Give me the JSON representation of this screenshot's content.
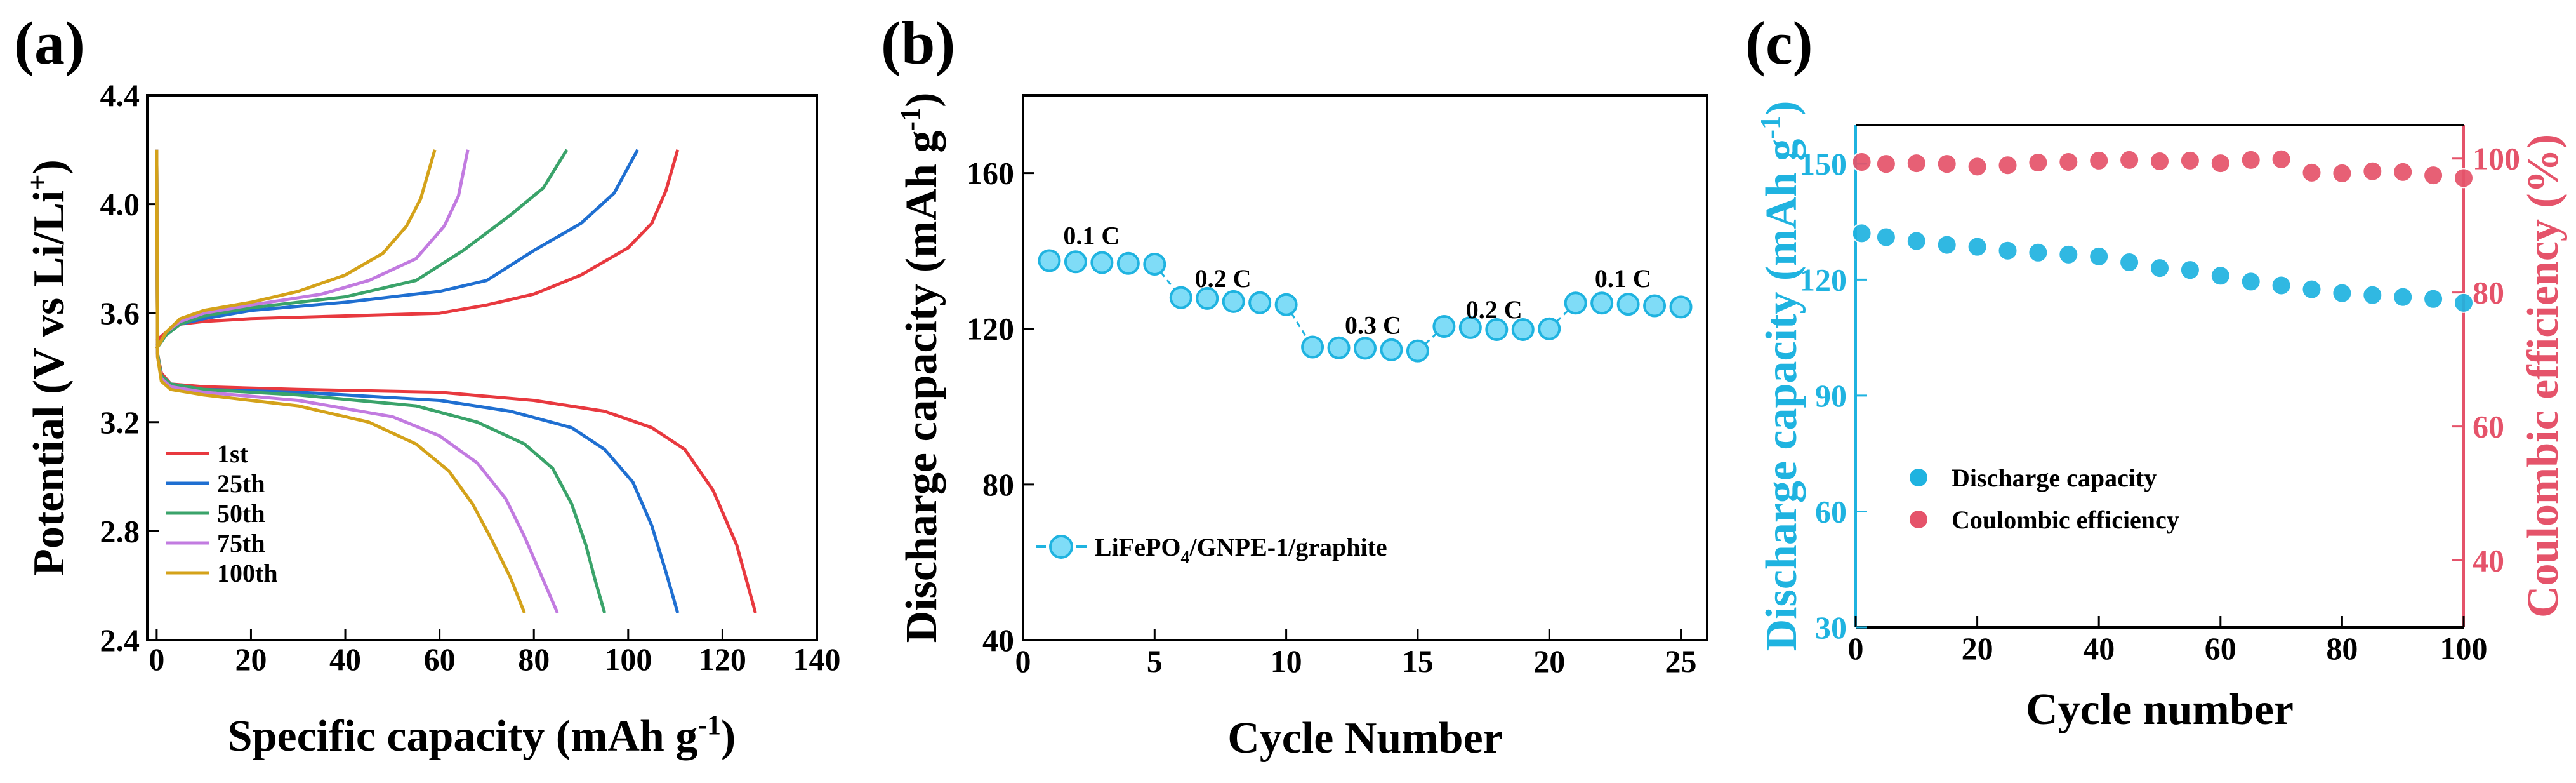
{
  "colors": {
    "red": "#e8393f",
    "blue": "#1f6fd1",
    "green": "#3aa36a",
    "purple": "#c27be0",
    "gold": "#d4a21a",
    "cyan": "#1fb3e0",
    "cyan_light": "#7fdcf7",
    "rose": "#e5536a",
    "axis": "#000000"
  },
  "chart_data": [
    {
      "panel": "(a)",
      "type": "line",
      "xlabel": "Specific capacity (mAh g",
      "xlabel_sup": "-1",
      "xlabel_end": ")",
      "ylabel": "Potential (V vs Li/Li",
      "ylabel_sup": "+",
      "ylabel_end": ")",
      "xlim": [
        -2,
        140
      ],
      "ylim": [
        2.4,
        4.4
      ],
      "xticks": [
        0,
        20,
        40,
        60,
        80,
        100,
        120,
        140
      ],
      "yticks": [
        2.4,
        2.8,
        3.2,
        3.6,
        4.0,
        4.4
      ],
      "ytick_labels": [
        "2.4",
        "2.8",
        "3.2",
        "3.6",
        "4.0",
        "4.4"
      ],
      "legend_position": "bottom-left",
      "series": [
        {
          "name": "1st",
          "color": "#e8393f",
          "charge": [
            [
              0,
              3.5
            ],
            [
              2,
              3.53
            ],
            [
              5,
              3.56
            ],
            [
              10,
              3.57
            ],
            [
              20,
              3.58
            ],
            [
              40,
              3.59
            ],
            [
              60,
              3.6
            ],
            [
              70,
              3.63
            ],
            [
              80,
              3.67
            ],
            [
              90,
              3.74
            ],
            [
              100,
              3.84
            ],
            [
              105,
              3.93
            ],
            [
              108,
              4.05
            ],
            [
              110.5,
              4.2
            ]
          ],
          "discharge": [
            [
              0,
              4.2
            ],
            [
              0.2,
              3.45
            ],
            [
              1,
              3.38
            ],
            [
              3,
              3.34
            ],
            [
              10,
              3.33
            ],
            [
              30,
              3.32
            ],
            [
              60,
              3.31
            ],
            [
              80,
              3.28
            ],
            [
              95,
              3.24
            ],
            [
              105,
              3.18
            ],
            [
              112,
              3.1
            ],
            [
              118,
              2.95
            ],
            [
              123,
              2.75
            ],
            [
              127,
              2.5
            ]
          ]
        },
        {
          "name": "25th",
          "color": "#1f6fd1",
          "charge": [
            [
              0,
              3.48
            ],
            [
              2,
              3.52
            ],
            [
              5,
              3.56
            ],
            [
              10,
              3.58
            ],
            [
              20,
              3.61
            ],
            [
              40,
              3.64
            ],
            [
              60,
              3.68
            ],
            [
              70,
              3.72
            ],
            [
              80,
              3.83
            ],
            [
              90,
              3.93
            ],
            [
              97,
              4.04
            ],
            [
              102,
              4.2
            ]
          ],
          "discharge": [
            [
              0,
              4.2
            ],
            [
              0.2,
              3.45
            ],
            [
              1,
              3.37
            ],
            [
              3,
              3.34
            ],
            [
              10,
              3.32
            ],
            [
              30,
              3.31
            ],
            [
              60,
              3.28
            ],
            [
              75,
              3.24
            ],
            [
              88,
              3.18
            ],
            [
              95,
              3.1
            ],
            [
              101,
              2.98
            ],
            [
              105,
              2.82
            ],
            [
              108,
              2.65
            ],
            [
              110.5,
              2.5
            ]
          ]
        },
        {
          "name": "50th",
          "color": "#3aa36a",
          "charge": [
            [
              0,
              3.47
            ],
            [
              2,
              3.52
            ],
            [
              5,
              3.56
            ],
            [
              10,
              3.59
            ],
            [
              20,
              3.62
            ],
            [
              40,
              3.66
            ],
            [
              55,
              3.72
            ],
            [
              65,
              3.83
            ],
            [
              75,
              3.96
            ],
            [
              82,
              4.06
            ],
            [
              87,
              4.2
            ]
          ],
          "discharge": [
            [
              0,
              4.2
            ],
            [
              0.2,
              3.45
            ],
            [
              1,
              3.37
            ],
            [
              3,
              3.34
            ],
            [
              10,
              3.32
            ],
            [
              30,
              3.3
            ],
            [
              55,
              3.26
            ],
            [
              68,
              3.2
            ],
            [
              78,
              3.12
            ],
            [
              84,
              3.03
            ],
            [
              88,
              2.9
            ],
            [
              91,
              2.75
            ],
            [
              93,
              2.62
            ],
            [
              95,
              2.5
            ]
          ]
        },
        {
          "name": "75th",
          "color": "#c27be0",
          "charge": [
            [
              0,
              3.47
            ],
            [
              2,
              3.53
            ],
            [
              5,
              3.57
            ],
            [
              10,
              3.6
            ],
            [
              20,
              3.63
            ],
            [
              35,
              3.67
            ],
            [
              45,
              3.72
            ],
            [
              55,
              3.8
            ],
            [
              61,
              3.92
            ],
            [
              64,
              4.03
            ],
            [
              66,
              4.2
            ]
          ],
          "discharge": [
            [
              0,
              4.2
            ],
            [
              0.2,
              3.44
            ],
            [
              1,
              3.36
            ],
            [
              3,
              3.33
            ],
            [
              10,
              3.31
            ],
            [
              30,
              3.28
            ],
            [
              50,
              3.22
            ],
            [
              60,
              3.15
            ],
            [
              68,
              3.05
            ],
            [
              74,
              2.92
            ],
            [
              78,
              2.78
            ],
            [
              82,
              2.62
            ],
            [
              85,
              2.5
            ]
          ]
        },
        {
          "name": "100th",
          "color": "#d4a21a",
          "charge": [
            [
              0,
              3.47
            ],
            [
              2,
              3.53
            ],
            [
              5,
              3.58
            ],
            [
              10,
              3.61
            ],
            [
              20,
              3.64
            ],
            [
              30,
              3.68
            ],
            [
              40,
              3.74
            ],
            [
              48,
              3.82
            ],
            [
              53,
              3.92
            ],
            [
              56,
              4.02
            ],
            [
              59,
              4.2
            ]
          ],
          "discharge": [
            [
              0,
              4.2
            ],
            [
              0.2,
              3.44
            ],
            [
              1,
              3.35
            ],
            [
              3,
              3.32
            ],
            [
              10,
              3.3
            ],
            [
              30,
              3.26
            ],
            [
              45,
              3.2
            ],
            [
              55,
              3.12
            ],
            [
              62,
              3.02
            ],
            [
              67,
              2.9
            ],
            [
              71,
              2.77
            ],
            [
              75,
              2.63
            ],
            [
              78,
              2.5
            ]
          ]
        }
      ]
    },
    {
      "panel": "(b)",
      "type": "scatter",
      "xlabel": "Cycle Number",
      "ylabel": "Discharge capacity (mAh g",
      "ylabel_sup": "-1",
      "ylabel_end": ")",
      "xlim": [
        0,
        26
      ],
      "ylim": [
        40,
        180
      ],
      "xticks": [
        0,
        5,
        10,
        15,
        20,
        25
      ],
      "yticks": [
        40,
        80,
        120,
        160
      ],
      "legend": {
        "pre": "LiFePO",
        "sub": "4",
        "post": "/GNPE-1/graphite",
        "position": "lower-left"
      },
      "annotations": [
        {
          "text": "0.1 C",
          "x": 2.6,
          "y": 144
        },
        {
          "text": "0.2 C",
          "x": 7.6,
          "y": 133
        },
        {
          "text": "0.3 C",
          "x": 13.3,
          "y": 121
        },
        {
          "text": "0.2 C",
          "x": 17.9,
          "y": 125
        },
        {
          "text": "0.1 C",
          "x": 22.8,
          "y": 133
        }
      ],
      "x": [
        1,
        2,
        3,
        4,
        5,
        6,
        7,
        8,
        9,
        10,
        11,
        12,
        13,
        14,
        15,
        16,
        17,
        18,
        19,
        20,
        21,
        22,
        23,
        24,
        25
      ],
      "values": [
        137.5,
        137.2,
        137.0,
        136.8,
        136.6,
        128.0,
        127.8,
        127.0,
        126.7,
        126.2,
        115.3,
        115.1,
        115.0,
        114.6,
        114.3,
        120.6,
        120.3,
        119.8,
        119.8,
        120.0,
        126.6,
        126.6,
        126.3,
        125.9,
        125.6
      ]
    },
    {
      "panel": "(c)",
      "type": "scatter",
      "xlabel": "Cycle number",
      "ylabel_left": "Discharge capacity (mAh g",
      "ylabel_left_sup": "-1",
      "ylabel_left_end": ")",
      "ylabel_right": "Coulombic efficiency (%)",
      "xlim": [
        0,
        100
      ],
      "ylim_left": [
        30,
        160
      ],
      "ylim_right": [
        30,
        105
      ],
      "xticks": [
        0,
        20,
        40,
        60,
        80,
        100
      ],
      "yticks_left": [
        30,
        60,
        90,
        120,
        150
      ],
      "yticks_right": [
        40,
        60,
        80,
        100
      ],
      "legend_position": "center-left",
      "series": [
        {
          "name": "Discharge capacity",
          "axis": "left",
          "color": "#1fb3e0",
          "x": [
            1,
            5,
            10,
            15,
            20,
            25,
            30,
            35,
            40,
            45,
            50,
            55,
            60,
            65,
            70,
            75,
            80,
            85,
            90,
            95,
            100
          ],
          "values": [
            132,
            131,
            130,
            129,
            128.5,
            127.5,
            127,
            126.5,
            126,
            124.5,
            123,
            122.5,
            121,
            119.5,
            118.5,
            117.5,
            116.5,
            116,
            115.5,
            115,
            114
          ]
        },
        {
          "name": "Coulombic efficiency",
          "axis": "right",
          "color": "#e5536a",
          "x": [
            1,
            5,
            10,
            15,
            20,
            25,
            30,
            35,
            40,
            45,
            50,
            55,
            60,
            65,
            70,
            75,
            80,
            85,
            90,
            95,
            100
          ],
          "values": [
            99.5,
            99.2,
            99.3,
            99.2,
            98.8,
            99.0,
            99.4,
            99.5,
            99.7,
            99.8,
            99.6,
            99.7,
            99.3,
            99.8,
            99.9,
            97.9,
            97.8,
            98.1,
            98.0,
            97.5,
            97.1
          ]
        }
      ]
    }
  ]
}
